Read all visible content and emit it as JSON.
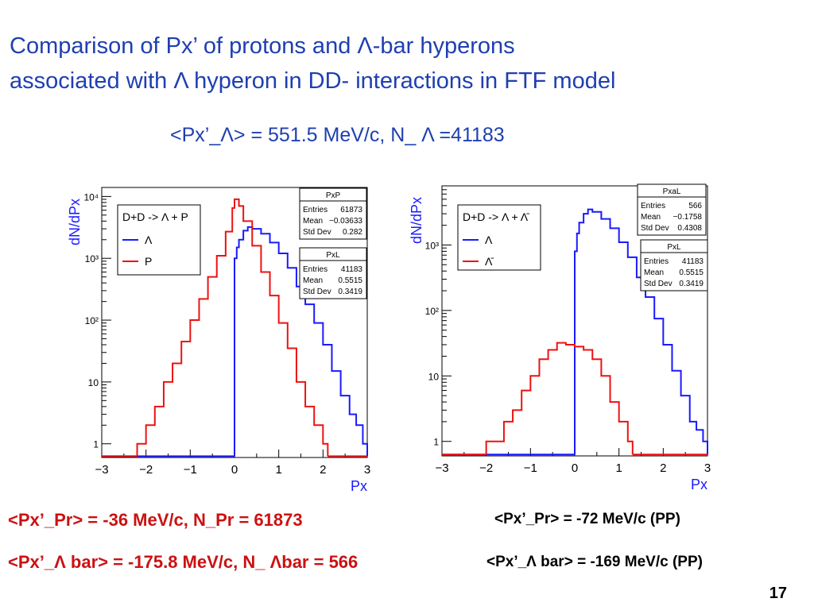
{
  "slide": {
    "title_line1": "Comparison of Px’ of protons and Λ-bar hyperons",
    "title_line2": "associated with Λ  hyperon  in DD- interactions in FTF model",
    "subtitle": "<Px’_Λ> = 551.5 MeV/c,    N_ Λ =41183",
    "note_pr_left": "<Px’_Pr> = -36 MeV/c,  N_Pr = 61873",
    "note_lbar_left": "<Px’_Λ bar> = -175.8 MeV/c,  N_ Λbar = 566",
    "note_pr_right": "<Px’_Pr> = -72 MeV/c  (PP)",
    "note_lbar_right": "<Px’_Λ bar> = -169 MeV/c  (PP)",
    "page_number": "17"
  },
  "colors": {
    "title": "#1f3fb0",
    "lambda": "#1a1aff",
    "proton": "#ee1111",
    "note_red": "#cc1111"
  },
  "chart_data": [
    {
      "type": "line",
      "ylabel": "dN/dPx",
      "xlabel": "Px",
      "xlim": [
        -3,
        3
      ],
      "ylim": [
        0.6,
        14000
      ],
      "log_y": true,
      "xticks": [
        -3,
        -2,
        -1,
        0,
        1,
        2,
        3
      ],
      "xtick_labels": [
        "−3",
        "−2",
        "−1",
        "0",
        "1",
        "2",
        "3"
      ],
      "yticks": [
        1,
        10,
        100,
        1000,
        10000
      ],
      "ytick_labels": [
        "1",
        "10",
        "10²",
        "10³",
        "10⁴"
      ],
      "legend": {
        "title": "D+D -> Λ + P",
        "entries": [
          "Λ",
          "P"
        ],
        "placement": "top-left"
      },
      "stat_boxes": [
        {
          "name": "PxP",
          "rows": [
            [
              "Entries",
              "61873"
            ],
            [
              "Mean",
              "−0.03633"
            ],
            [
              "Std Dev",
              "0.282"
            ]
          ]
        },
        {
          "name": "PxL",
          "rows": [
            [
              "Entries",
              "41183"
            ],
            [
              "Mean",
              "0.5515"
            ],
            [
              "Std Dev",
              "0.3419"
            ]
          ]
        }
      ],
      "series": [
        {
          "name": "Λ",
          "color": "#1a1aff",
          "x": [
            0,
            0.05,
            0.1,
            0.2,
            0.3,
            0.4,
            0.6,
            0.8,
            1.0,
            1.2,
            1.4,
            1.6,
            1.8,
            2.0,
            2.2,
            2.4,
            2.6,
            2.75,
            2.9,
            3.0
          ],
          "values": [
            1000,
            1500,
            2000,
            2800,
            3200,
            3000,
            2500,
            1800,
            1200,
            700,
            350,
            180,
            90,
            40,
            15,
            6,
            3,
            2,
            1,
            1
          ]
        },
        {
          "name": "P",
          "color": "#ee1111",
          "x": [
            -2.2,
            -2.0,
            -1.8,
            -1.6,
            -1.4,
            -1.2,
            -1.0,
            -0.8,
            -0.6,
            -0.4,
            -0.2,
            -0.05,
            0.0,
            0.1,
            0.2,
            0.4,
            0.6,
            0.8,
            1.0,
            1.2,
            1.4,
            1.6,
            1.8,
            2.0
          ],
          "values": [
            1,
            2,
            4,
            10,
            20,
            45,
            100,
            220,
            500,
            1100,
            2700,
            6500,
            9000,
            7000,
            4000,
            1600,
            600,
            250,
            90,
            35,
            10,
            4,
            2,
            1
          ]
        }
      ]
    },
    {
      "type": "line",
      "ylabel": "dN/dPx",
      "xlabel": "Px",
      "xlim": [
        -3,
        3
      ],
      "ylim": [
        0.6,
        8000
      ],
      "log_y": true,
      "xticks": [
        -3,
        -2,
        -1,
        0,
        1,
        2,
        3
      ],
      "xtick_labels": [
        "−3",
        "−2",
        "−1",
        "0",
        "1",
        "2",
        "3"
      ],
      "yticks": [
        1,
        10,
        100,
        1000
      ],
      "ytick_labels": [
        "1",
        "10",
        "10²",
        "10³"
      ],
      "legend": {
        "title": "D+D -> Λ + Λ̄",
        "entries": [
          "Λ",
          "Λ̄"
        ],
        "placement": "top-left"
      },
      "stat_boxes": [
        {
          "name": "PxaL",
          "rows": [
            [
              "Entries",
              "566"
            ],
            [
              "Mean",
              "−0.1758"
            ],
            [
              "Std Dev",
              "0.4308"
            ]
          ]
        },
        {
          "name": "PxL",
          "rows": [
            [
              "Entries",
              "41183"
            ],
            [
              "Mean",
              "0.5515"
            ],
            [
              "Std Dev",
              "0.3419"
            ]
          ]
        }
      ],
      "series": [
        {
          "name": "Λ",
          "color": "#1a1aff",
          "x": [
            0,
            0.05,
            0.1,
            0.2,
            0.3,
            0.4,
            0.6,
            0.8,
            1.0,
            1.2,
            1.4,
            1.6,
            1.8,
            2.0,
            2.2,
            2.4,
            2.6,
            2.75,
            2.9,
            3.0
          ],
          "values": [
            800,
            1500,
            2200,
            3000,
            3500,
            3200,
            2500,
            1800,
            1100,
            650,
            320,
            160,
            75,
            30,
            12,
            5,
            2,
            1.5,
            1,
            1
          ]
        },
        {
          "name": "Λ̄",
          "color": "#ee1111",
          "x": [
            -2.0,
            -1.8,
            -1.6,
            -1.4,
            -1.2,
            -1.0,
            -0.8,
            -0.6,
            -0.4,
            -0.2,
            0.0,
            0.2,
            0.4,
            0.6,
            0.8,
            1.0,
            1.2
          ],
          "values": [
            1,
            1,
            2,
            3,
            6,
            10,
            18,
            25,
            32,
            30,
            28,
            25,
            18,
            10,
            4,
            2,
            1
          ]
        }
      ]
    }
  ]
}
